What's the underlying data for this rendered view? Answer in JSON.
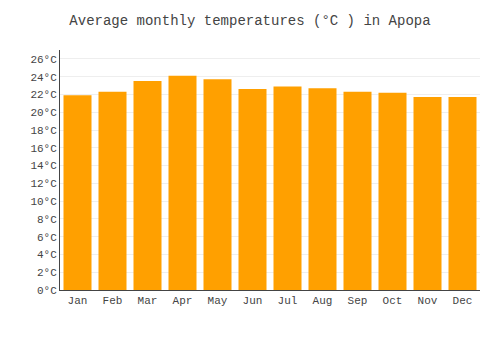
{
  "chart_data": {
    "type": "bar",
    "title": "Average monthly temperatures (°C ) in Apopa",
    "categories": [
      "Jan",
      "Feb",
      "Mar",
      "Apr",
      "May",
      "Jun",
      "Jul",
      "Aug",
      "Sep",
      "Oct",
      "Nov",
      "Dec"
    ],
    "values": [
      21.9,
      22.3,
      23.5,
      24.1,
      23.7,
      22.6,
      22.9,
      22.7,
      22.3,
      22.2,
      21.7,
      21.7
    ],
    "color": "#FFA000",
    "ylim": [
      0,
      27
    ],
    "yticks": [
      {
        "value": 0,
        "label": "0°C"
      },
      {
        "value": 2,
        "label": "2°C"
      },
      {
        "value": 4,
        "label": "4°C"
      },
      {
        "value": 6,
        "label": "6°C"
      },
      {
        "value": 8,
        "label": "8°C"
      },
      {
        "value": 10,
        "label": "10°C"
      },
      {
        "value": 12,
        "label": "12°C"
      },
      {
        "value": 14,
        "label": "14°C"
      },
      {
        "value": 16,
        "label": "16°C"
      },
      {
        "value": 18,
        "label": "18°C"
      },
      {
        "value": 20,
        "label": "20°C"
      },
      {
        "value": 22,
        "label": "22°C"
      },
      {
        "value": 24,
        "label": "24°C"
      },
      {
        "value": 26,
        "label": "26°C"
      }
    ],
    "grid": true
  }
}
